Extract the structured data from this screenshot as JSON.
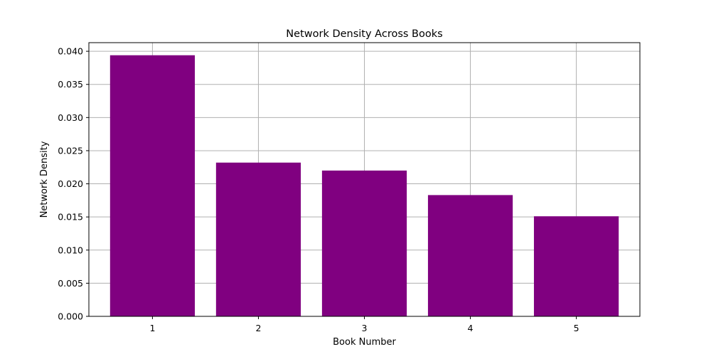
{
  "chart_data": {
    "type": "bar",
    "title": "Network Density Across Books",
    "xlabel": "Book Number",
    "ylabel": "Network Density",
    "categories": [
      "1",
      "2",
      "3",
      "4",
      "5"
    ],
    "values": [
      0.0394,
      0.0232,
      0.022,
      0.0183,
      0.0151
    ],
    "ylim": [
      0,
      0.0413
    ],
    "yticks": [
      0,
      0.005,
      0.01,
      0.015,
      0.02,
      0.025,
      0.03,
      0.035,
      0.04
    ],
    "ytick_labels": [
      "0.000",
      "0.005",
      "0.010",
      "0.015",
      "0.020",
      "0.025",
      "0.030",
      "0.035",
      "0.040"
    ],
    "grid": true,
    "bar_color": "#800080",
    "grid_color": "#b0b0b0"
  }
}
